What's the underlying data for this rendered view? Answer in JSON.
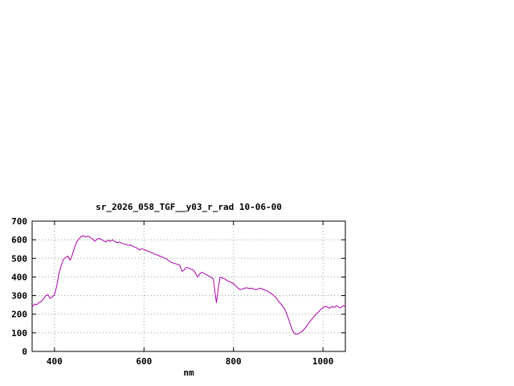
{
  "chart_data": {
    "type": "line",
    "title": "sr_2026_058_TGF__y03_r_rad 10-06-00",
    "xlabel": "nm",
    "ylabel": "",
    "xlim": [
      350,
      1050
    ],
    "ylim": [
      0,
      700
    ],
    "xticks": [
      400,
      600,
      800,
      1000
    ],
    "yticks": [
      0,
      100,
      200,
      300,
      400,
      500,
      600,
      700
    ],
    "grid": true,
    "legend": "none",
    "line_color": "#aa00aa",
    "x": [
      350,
      355,
      360,
      365,
      370,
      375,
      380,
      385,
      390,
      395,
      400,
      405,
      410,
      415,
      420,
      425,
      430,
      435,
      440,
      445,
      450,
      455,
      460,
      465,
      470,
      475,
      480,
      485,
      490,
      495,
      500,
      505,
      510,
      515,
      520,
      525,
      530,
      535,
      540,
      545,
      550,
      555,
      560,
      565,
      570,
      575,
      580,
      585,
      590,
      595,
      600,
      605,
      610,
      615,
      620,
      625,
      630,
      635,
      640,
      645,
      650,
      655,
      660,
      665,
      670,
      675,
      680,
      685,
      690,
      695,
      700,
      705,
      710,
      715,
      720,
      725,
      730,
      735,
      740,
      745,
      750,
      755,
      758,
      762,
      766,
      770,
      775,
      780,
      785,
      790,
      795,
      800,
      805,
      810,
      815,
      820,
      825,
      830,
      835,
      840,
      845,
      850,
      855,
      860,
      865,
      870,
      875,
      880,
      885,
      890,
      895,
      900,
      905,
      910,
      915,
      920,
      925,
      930,
      935,
      940,
      945,
      950,
      955,
      960,
      965,
      970,
      975,
      980,
      985,
      990,
      995,
      1000,
      1005,
      1010,
      1015,
      1020,
      1025,
      1030,
      1035,
      1040,
      1045,
      1050
    ],
    "y": [
      238,
      255,
      250,
      262,
      268,
      280,
      298,
      305,
      285,
      292,
      305,
      350,
      420,
      460,
      495,
      505,
      512,
      490,
      520,
      560,
      590,
      605,
      618,
      622,
      615,
      620,
      612,
      605,
      592,
      603,
      608,
      600,
      595,
      588,
      598,
      592,
      600,
      590,
      585,
      588,
      582,
      578,
      575,
      570,
      572,
      565,
      560,
      555,
      545,
      552,
      548,
      542,
      538,
      532,
      528,
      522,
      518,
      512,
      508,
      502,
      498,
      488,
      480,
      475,
      472,
      468,
      462,
      430,
      438,
      452,
      448,
      442,
      438,
      420,
      400,
      418,
      425,
      418,
      412,
      405,
      398,
      390,
      330,
      262,
      340,
      398,
      395,
      390,
      382,
      375,
      370,
      365,
      352,
      340,
      332,
      335,
      340,
      342,
      338,
      340,
      335,
      332,
      335,
      340,
      335,
      330,
      325,
      318,
      310,
      300,
      290,
      272,
      258,
      242,
      225,
      195,
      160,
      125,
      100,
      92,
      95,
      102,
      112,
      125,
      140,
      158,
      172,
      188,
      200,
      212,
      225,
      235,
      242,
      238,
      232,
      242,
      236,
      246,
      238,
      234,
      246,
      242
    ]
  },
  "page": {
    "background": "#ffffff"
  }
}
